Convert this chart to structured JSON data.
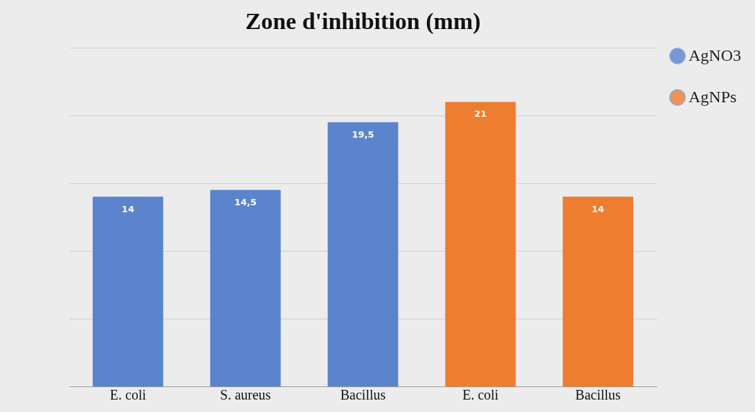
{
  "chart_data": {
    "type": "bar",
    "title": "Zone d'inhibition (mm)",
    "categories": [
      "E. coli",
      "S. aureus",
      "Bacillus",
      "E. coli",
      "Bacillus"
    ],
    "series": [
      {
        "name": "AgNO3",
        "color": "#5b84cc",
        "values": [
          14,
          14.5,
          19.5,
          null,
          null
        ],
        "value_labels": [
          "14",
          "14,5",
          "19,5",
          null,
          null
        ]
      },
      {
        "name": "AgNPs",
        "color": "#ee7d31",
        "values": [
          null,
          null,
          null,
          21,
          14
        ],
        "value_labels": [
          null,
          null,
          null,
          "21",
          "14"
        ]
      }
    ],
    "ylim": [
      0,
      25
    ],
    "yticks": [
      {
        "value": 0,
        "label": null
      },
      {
        "value": 5,
        "label": null
      },
      {
        "value": 10,
        "label": null
      },
      {
        "value": 15,
        "label": null
      },
      {
        "value": 20,
        "label": null
      },
      {
        "value": 25,
        "label": null
      }
    ],
    "tick_labels": "x",
    "grid": "y",
    "legend": "right",
    "marker": "circle"
  }
}
